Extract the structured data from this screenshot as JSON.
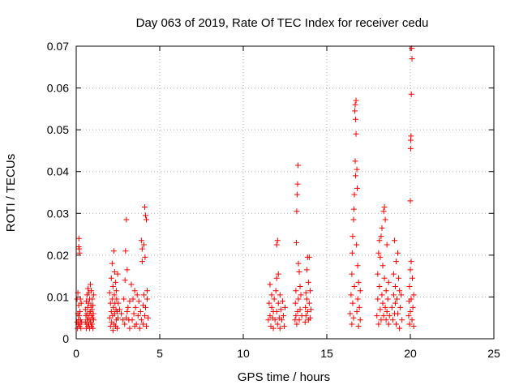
{
  "chart_data": {
    "type": "scatter",
    "title": "Day 063 of 2019, Rate Of TEC Index for receiver cedu",
    "xlabel": "GPS time / hours",
    "ylabel": "ROTI / TECUs",
    "xlim": [
      0,
      25
    ],
    "ylim": [
      0,
      0.07
    ],
    "x_ticks": [
      "0",
      "5",
      "10",
      "15",
      "20",
      "25"
    ],
    "y_ticks": [
      "0",
      "0.01",
      "0.02",
      "0.03",
      "0.04",
      "0.05",
      "0.06",
      "0.07"
    ],
    "grid": true,
    "marker": "+",
    "color": "#ff0000",
    "series": [
      {
        "points": [
          [
            0.05,
            0.004
          ],
          [
            0.05,
            0.0095
          ],
          [
            0.08,
            0.0025
          ],
          [
            0.1,
            0.006
          ],
          [
            0.1,
            0.011
          ],
          [
            0.12,
            0.0035
          ],
          [
            0.14,
            0.0045
          ],
          [
            0.15,
            0.008
          ],
          [
            0.15,
            0.022
          ],
          [
            0.16,
            0.024
          ],
          [
            0.17,
            0.0055
          ],
          [
            0.18,
            0.0215
          ],
          [
            0.2,
            0.003
          ],
          [
            0.2,
            0.0205
          ],
          [
            0.22,
            0.0065
          ],
          [
            0.24,
            0.0035
          ],
          [
            0.25,
            0.0095
          ],
          [
            0.26,
            0.0045
          ],
          [
            0.28,
            0.0025
          ],
          [
            0.3,
            0.0085
          ],
          [
            0.32,
            0.004
          ],
          [
            0.55,
            0.004
          ],
          [
            0.55,
            0.007
          ],
          [
            0.58,
            0.0055
          ],
          [
            0.6,
            0.0025
          ],
          [
            0.6,
            0.009
          ],
          [
            0.62,
            0.0035
          ],
          [
            0.64,
            0.006
          ],
          [
            0.65,
            0.0105
          ],
          [
            0.66,
            0.0045
          ],
          [
            0.68,
            0.0075
          ],
          [
            0.7,
            0.003
          ],
          [
            0.7,
            0.012
          ],
          [
            0.72,
            0.005
          ],
          [
            0.74,
            0.0085
          ],
          [
            0.75,
            0.0035
          ],
          [
            0.76,
            0.011
          ],
          [
            0.78,
            0.006
          ],
          [
            0.8,
            0.0025
          ],
          [
            0.8,
            0.0095
          ],
          [
            0.82,
            0.0045
          ],
          [
            0.84,
            0.0065
          ],
          [
            0.85,
            0.013
          ],
          [
            0.86,
            0.004
          ],
          [
            0.88,
            0.008
          ],
          [
            0.9,
            0.003
          ],
          [
            0.9,
            0.0115
          ],
          [
            0.92,
            0.0055
          ],
          [
            0.94,
            0.007
          ],
          [
            0.95,
            0.0035
          ],
          [
            0.96,
            0.0095
          ],
          [
            0.98,
            0.005
          ],
          [
            1.0,
            0.0025
          ],
          [
            1.0,
            0.008
          ],
          [
            1.02,
            0.006
          ],
          [
            1.04,
            0.0045
          ],
          [
            1.05,
            0.0105
          ],
          [
            2.0,
            0.005
          ],
          [
            2.0,
            0.011
          ],
          [
            2.05,
            0.003
          ],
          [
            2.05,
            0.0085
          ],
          [
            2.1,
            0.0065
          ],
          [
            2.1,
            0.0145
          ],
          [
            2.12,
            0.004
          ],
          [
            2.15,
            0.0095
          ],
          [
            2.15,
            0.018
          ],
          [
            2.18,
            0.0055
          ],
          [
            2.2,
            0.002
          ],
          [
            2.2,
            0.0125
          ],
          [
            2.22,
            0.0075
          ],
          [
            2.25,
            0.021
          ],
          [
            2.26,
            0.0035
          ],
          [
            2.28,
            0.0105
          ],
          [
            2.3,
            0.006
          ],
          [
            2.3,
            0.016
          ],
          [
            2.32,
            0.0085
          ],
          [
            2.35,
            0.003
          ],
          [
            2.35,
            0.0135
          ],
          [
            2.38,
            0.007
          ],
          [
            2.4,
            0.0045
          ],
          [
            2.4,
            0.0115
          ],
          [
            2.42,
            0.0095
          ],
          [
            2.45,
            0.0025
          ],
          [
            2.45,
            0.0065
          ],
          [
            2.48,
            0.0155
          ],
          [
            2.5,
            0.005
          ],
          [
            2.52,
            0.0085
          ],
          [
            2.6,
            0.007
          ],
          [
            2.7,
            0.006
          ],
          [
            2.8,
            0.0045
          ],
          [
            2.85,
            0.0095
          ],
          [
            2.9,
            0.0035
          ],
          [
            2.92,
            0.014
          ],
          [
            2.95,
            0.021
          ],
          [
            3.0,
            0.0285
          ],
          [
            3.0,
            0.005
          ],
          [
            3.05,
            0.0165
          ],
          [
            3.05,
            0.0065
          ],
          [
            3.1,
            0.0075
          ],
          [
            3.15,
            0.0045
          ],
          [
            3.2,
            0.009
          ],
          [
            3.2,
            0.0025
          ],
          [
            3.3,
            0.013
          ],
          [
            3.35,
            0.0045
          ],
          [
            3.4,
            0.0095
          ],
          [
            3.45,
            0.006
          ],
          [
            3.5,
            0.003
          ],
          [
            3.5,
            0.0115
          ],
          [
            3.55,
            0.0075
          ],
          [
            3.6,
            0.0035
          ],
          [
            3.65,
            0.0105
          ],
          [
            3.7,
            0.0055
          ],
          [
            3.75,
            0.009
          ],
          [
            3.8,
            0.0025
          ],
          [
            3.85,
            0.0065
          ],
          [
            3.9,
            0.0045
          ],
          [
            3.9,
            0.0235
          ],
          [
            3.95,
            0.0215
          ],
          [
            3.95,
            0.0185
          ],
          [
            4.0,
            0.008
          ],
          [
            4.0,
            0.0035
          ],
          [
            4.05,
            0.0105
          ],
          [
            4.05,
            0.0225
          ],
          [
            4.1,
            0.0055
          ],
          [
            4.1,
            0.0315
          ],
          [
            4.12,
            0.0195
          ],
          [
            4.15,
            0.0075
          ],
          [
            4.15,
            0.0295
          ],
          [
            4.2,
            0.003
          ],
          [
            4.2,
            0.0285
          ],
          [
            4.25,
            0.0095
          ],
          [
            4.25,
            0.0115
          ],
          [
            4.3,
            0.005
          ],
          [
            11.5,
            0.0045
          ],
          [
            11.55,
            0.0085
          ],
          [
            11.6,
            0.0055
          ],
          [
            11.6,
            0.013
          ],
          [
            11.65,
            0.003
          ],
          [
            11.7,
            0.0075
          ],
          [
            11.7,
            0.0105
          ],
          [
            11.75,
            0.005
          ],
          [
            11.8,
            0.0065
          ],
          [
            11.8,
            0.0025
          ],
          [
            11.85,
            0.0095
          ],
          [
            11.9,
            0.0045
          ],
          [
            11.95,
            0.0115
          ],
          [
            12.0,
            0.0065
          ],
          [
            12.0,
            0.0145
          ],
          [
            12.0,
            0.0225
          ],
          [
            12.05,
            0.0235
          ],
          [
            12.05,
            0.0035
          ],
          [
            12.1,
            0.0155
          ],
          [
            12.1,
            0.0085
          ],
          [
            12.15,
            0.005
          ],
          [
            12.2,
            0.0105
          ],
          [
            12.2,
            0.0025
          ],
          [
            12.25,
            0.007
          ],
          [
            12.3,
            0.0045
          ],
          [
            12.35,
            0.009
          ],
          [
            12.4,
            0.0055
          ],
          [
            12.45,
            0.003
          ],
          [
            12.5,
            0.0075
          ],
          [
            13.1,
            0.0045
          ],
          [
            13.12,
            0.0085
          ],
          [
            13.15,
            0.0055
          ],
          [
            13.15,
            0.0115
          ],
          [
            13.18,
            0.023
          ],
          [
            13.2,
            0.0305
          ],
          [
            13.2,
            0.0035
          ],
          [
            13.22,
            0.0345
          ],
          [
            13.25,
            0.037
          ],
          [
            13.25,
            0.0065
          ],
          [
            13.28,
            0.0415
          ],
          [
            13.3,
            0.018
          ],
          [
            13.3,
            0.0095
          ],
          [
            13.35,
            0.016
          ],
          [
            13.35,
            0.0045
          ],
          [
            13.4,
            0.0125
          ],
          [
            13.4,
            0.007
          ],
          [
            13.45,
            0.0105
          ],
          [
            13.5,
            0.0055
          ],
          [
            13.7,
            0.004
          ],
          [
            13.72,
            0.0075
          ],
          [
            13.75,
            0.0055
          ],
          [
            13.75,
            0.011
          ],
          [
            13.8,
            0.0095
          ],
          [
            13.8,
            0.0165
          ],
          [
            13.85,
            0.0065
          ],
          [
            13.85,
            0.0195
          ],
          [
            13.9,
            0.0045
          ],
          [
            13.9,
            0.0135
          ],
          [
            13.95,
            0.0195
          ],
          [
            13.95,
            0.0085
          ],
          [
            14.0,
            0.0115
          ],
          [
            14.0,
            0.005
          ],
          [
            14.05,
            0.007
          ],
          [
            16.4,
            0.006
          ],
          [
            16.45,
            0.0105
          ],
          [
            16.5,
            0.0035
          ],
          [
            16.5,
            0.0155
          ],
          [
            16.52,
            0.0205
          ],
          [
            16.55,
            0.0085
          ],
          [
            16.55,
            0.0245
          ],
          [
            16.6,
            0.005
          ],
          [
            16.6,
            0.0285
          ],
          [
            16.62,
            0.031
          ],
          [
            16.65,
            0.0125
          ],
          [
            16.65,
            0.0345
          ],
          [
            16.68,
            0.0545
          ],
          [
            16.7,
            0.056
          ],
          [
            16.7,
            0.0425
          ],
          [
            16.72,
            0.0525
          ],
          [
            16.72,
            0.039
          ],
          [
            16.75,
            0.057
          ],
          [
            16.75,
            0.049
          ],
          [
            16.78,
            0.0225
          ],
          [
            16.8,
            0.0065
          ],
          [
            16.8,
            0.0405
          ],
          [
            16.82,
            0.036
          ],
          [
            16.85,
            0.0175
          ],
          [
            16.85,
            0.0095
          ],
          [
            16.9,
            0.003
          ],
          [
            16.9,
            0.0135
          ],
          [
            16.95,
            0.0075
          ],
          [
            17.0,
            0.0045
          ],
          [
            17.0,
            0.0115
          ],
          [
            18.0,
            0.0055
          ],
          [
            18.05,
            0.0095
          ],
          [
            18.05,
            0.0155
          ],
          [
            18.1,
            0.0035
          ],
          [
            18.1,
            0.0205
          ],
          [
            18.15,
            0.0125
          ],
          [
            18.15,
            0.0235
          ],
          [
            18.2,
            0.007
          ],
          [
            18.2,
            0.0195
          ],
          [
            18.25,
            0.0045
          ],
          [
            18.25,
            0.0245
          ],
          [
            18.3,
            0.0105
          ],
          [
            18.3,
            0.0265
          ],
          [
            18.35,
            0.0085
          ],
          [
            18.35,
            0.0175
          ],
          [
            18.4,
            0.0055
          ],
          [
            18.4,
            0.0305
          ],
          [
            18.45,
            0.0315
          ],
          [
            18.45,
            0.0145
          ],
          [
            18.5,
            0.0075
          ],
          [
            18.5,
            0.0285
          ],
          [
            18.55,
            0.0115
          ],
          [
            18.55,
            0.0045
          ],
          [
            18.6,
            0.0225
          ],
          [
            18.6,
            0.0065
          ],
          [
            18.65,
            0.0095
          ],
          [
            18.7,
            0.0035
          ],
          [
            18.7,
            0.0135
          ],
          [
            18.75,
            0.0055
          ],
          [
            18.9,
            0.0075
          ],
          [
            18.95,
            0.0045
          ],
          [
            19.0,
            0.0105
          ],
          [
            19.0,
            0.0155
          ],
          [
            19.05,
            0.006
          ],
          [
            19.05,
            0.0235
          ],
          [
            19.1,
            0.0085
          ],
          [
            19.1,
            0.0125
          ],
          [
            19.15,
            0.0035
          ],
          [
            19.15,
            0.0185
          ],
          [
            19.2,
            0.0095
          ],
          [
            19.25,
            0.006
          ],
          [
            19.25,
            0.0205
          ],
          [
            19.3,
            0.0145
          ],
          [
            19.35,
            0.0025
          ],
          [
            19.35,
            0.0115
          ],
          [
            19.4,
            0.0075
          ],
          [
            19.45,
            0.0105
          ],
          [
            19.5,
            0.0045
          ],
          [
            19.9,
            0.0055
          ],
          [
            19.92,
            0.009
          ],
          [
            19.95,
            0.0035
          ],
          [
            19.95,
            0.0125
          ],
          [
            20.0,
            0.0065
          ],
          [
            20.0,
            0.0165
          ],
          [
            20.0,
            0.033
          ],
          [
            20.02,
            0.0455
          ],
          [
            20.02,
            0.0475
          ],
          [
            20.04,
            0.0485
          ],
          [
            20.05,
            0.0185
          ],
          [
            20.05,
            0.0095
          ],
          [
            20.06,
            0.0585
          ],
          [
            20.08,
            0.0695
          ],
          [
            20.1,
            0.067
          ],
          [
            20.1,
            0.0045
          ],
          [
            20.12,
            0.0145
          ],
          [
            20.15,
            0.0075
          ],
          [
            20.2,
            0.0105
          ],
          [
            20.2,
            0.003
          ]
        ]
      }
    ]
  }
}
